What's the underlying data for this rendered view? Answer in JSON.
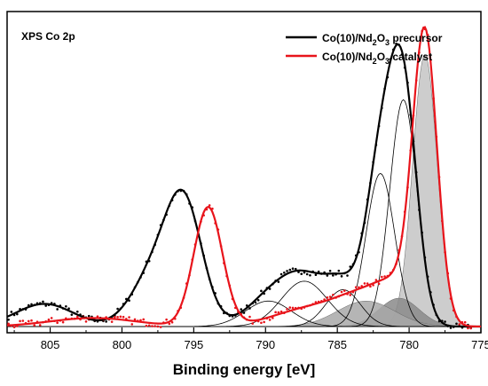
{
  "chart_data": {
    "type": "line",
    "panel_label": "XPS Co 2p",
    "xlabel": "Binding energy [eV]",
    "ylabel": "",
    "xlim": [
      808,
      775
    ],
    "x_reversed": true,
    "ylim": [
      0,
      1.08
    ],
    "x_ticks": [
      805,
      800,
      795,
      790,
      785,
      780,
      775
    ],
    "legend_position": "top-right",
    "legend": [
      {
        "series": "precursor",
        "label_main": "Co(10)/Nd",
        "sub1": "2",
        "mid": "O",
        "sub2": "3",
        "label_tail": " precursor",
        "color": "#000000"
      },
      {
        "series": "catalyst",
        "label_main": "Co(10)/Nd",
        "sub1": "2",
        "mid": "O",
        "sub2": "3",
        "label_tail": " catalyst",
        "color": "#e8141b"
      }
    ],
    "series": [
      {
        "name": "Co(10)/Nd2O3 precursor",
        "color": "#000000",
        "fit_peaks": [
          {
            "center": 780.4,
            "height": 0.8,
            "width": 0.95
          },
          {
            "center": 782.0,
            "height": 0.54,
            "width": 1.0
          },
          {
            "center": 784.6,
            "height": 0.13,
            "width": 1.2
          },
          {
            "center": 787.3,
            "height": 0.16,
            "width": 1.6
          },
          {
            "center": 789.8,
            "height": 0.09,
            "width": 1.6
          },
          {
            "center": 795.6,
            "height": 0.38,
            "width": 1.25
          },
          {
            "center": 797.6,
            "height": 0.2,
            "width": 1.6
          },
          {
            "center": 805.4,
            "height": 0.08,
            "width": 2.0
          }
        ]
      },
      {
        "name": "Co(10)/Nd2O3 catalyst",
        "color": "#e8141b",
        "fit_peaks": [
          {
            "center": 778.9,
            "height": 1.0,
            "width": 0.85
          },
          {
            "center": 780.7,
            "height": 0.1,
            "width": 1.4
          },
          {
            "center": 783.0,
            "height": 0.1,
            "width": 2.0
          },
          {
            "center": 794.0,
            "height": 0.42,
            "width": 1.0
          },
          {
            "center": 787.0,
            "height": 0.06,
            "width": 2.5
          },
          {
            "center": 802.0,
            "height": 0.03,
            "width": 3.0
          }
        ]
      }
    ],
    "component_peaks_precursor": [
      {
        "center": 780.4,
        "height": 0.8,
        "width": 0.95
      },
      {
        "center": 782.0,
        "height": 0.54,
        "width": 1.0
      },
      {
        "center": 784.6,
        "height": 0.13,
        "width": 1.2
      },
      {
        "center": 787.3,
        "height": 0.16,
        "width": 1.6
      },
      {
        "center": 789.8,
        "height": 0.09,
        "width": 1.6
      }
    ],
    "component_peaks_catalyst_shaded": [
      {
        "center": 778.9,
        "height": 0.96,
        "width": 0.85,
        "fill": "#c4c4c4"
      },
      {
        "center": 780.7,
        "height": 0.1,
        "width": 1.4,
        "fill": "#8a8a8a"
      },
      {
        "center": 783.0,
        "height": 0.09,
        "width": 2.0,
        "fill": "#a8a8a8"
      }
    ]
  }
}
